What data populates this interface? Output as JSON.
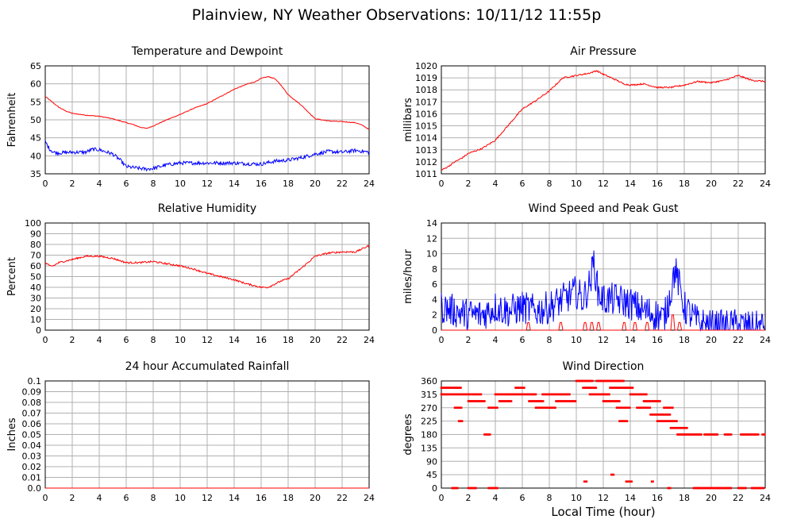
{
  "page": {
    "title": "Plainview, NY Weather Observations: 10/11/12 11:55p",
    "xaxis_label": "Local Time (hour)"
  },
  "chart_data": [
    {
      "id": "temp",
      "type": "line",
      "title": "Temperature and Dewpoint",
      "ylabel": "Fahrenheit",
      "xlim": [
        0,
        24
      ],
      "ylim": [
        35,
        65
      ],
      "xticks": [
        0,
        2,
        4,
        6,
        8,
        10,
        12,
        14,
        16,
        18,
        20,
        22,
        24
      ],
      "yticks": [
        35,
        40,
        45,
        50,
        55,
        60,
        65
      ],
      "grid": true,
      "series": [
        {
          "color": "#ff0000",
          "noise": 0.1,
          "x": [
            0,
            0.5,
            1,
            1.5,
            2,
            3,
            4,
            5,
            6,
            6.5,
            7,
            7.5,
            8,
            9,
            10,
            11,
            12,
            13,
            14,
            15,
            15.5,
            16,
            16.5,
            17,
            17.5,
            18,
            19,
            20,
            21,
            22,
            23,
            23.5,
            24
          ],
          "y": [
            56.5,
            55,
            53.5,
            52.5,
            51.8,
            51.3,
            51,
            50.3,
            49.2,
            48.7,
            48,
            47.6,
            48.3,
            50,
            51.5,
            53.2,
            54.5,
            56.5,
            58.5,
            60,
            60.5,
            61.5,
            62,
            61.5,
            59.5,
            57,
            54,
            50.3,
            49.7,
            49.5,
            49.2,
            48.5,
            47.3
          ]
        },
        {
          "color": "#0000ff",
          "noise": 0.5,
          "x": [
            0,
            0.3,
            0.6,
            1,
            2,
            3,
            3.5,
            4,
            5,
            5.5,
            6,
            7,
            7.5,
            8,
            9,
            10,
            11,
            12,
            13,
            14,
            15,
            16,
            17,
            18,
            19,
            20,
            21,
            22,
            23,
            24
          ],
          "y": [
            44,
            42,
            41,
            40.8,
            41,
            41,
            41.8,
            41.7,
            40.5,
            39,
            37,
            36.5,
            36.3,
            36.5,
            37.5,
            38,
            38,
            38,
            38,
            38,
            37.8,
            37.7,
            38.5,
            38.8,
            39.5,
            40.5,
            41.2,
            41,
            41.5,
            41
          ]
        }
      ]
    },
    {
      "id": "pressure",
      "type": "line",
      "title": "Air Pressure",
      "ylabel": "millibars",
      "xlim": [
        0,
        24
      ],
      "ylim": [
        1011,
        1020
      ],
      "xticks": [
        0,
        2,
        4,
        6,
        8,
        10,
        12,
        14,
        16,
        18,
        20,
        22,
        24
      ],
      "yticks": [
        1011,
        1012,
        1013,
        1014,
        1015,
        1016,
        1017,
        1018,
        1019,
        1020
      ],
      "grid": true,
      "series": [
        {
          "color": "#ff0000",
          "noise": 0.06,
          "x": [
            0,
            0.5,
            1,
            1.5,
            2,
            3,
            4,
            5,
            6,
            7,
            8,
            9,
            10,
            11,
            11.5,
            12,
            13,
            13.5,
            14,
            15,
            16,
            17,
            18,
            19,
            20,
            21,
            22,
            23,
            24
          ],
          "y": [
            1011.3,
            1011.6,
            1012,
            1012.3,
            1012.7,
            1013.1,
            1013.8,
            1015.1,
            1016.4,
            1017.1,
            1017.9,
            1019,
            1019.2,
            1019.4,
            1019.6,
            1019.3,
            1018.8,
            1018.5,
            1018.4,
            1018.5,
            1018.2,
            1018.2,
            1018.4,
            1018.7,
            1018.6,
            1018.8,
            1019.2,
            1018.8,
            1018.7
          ]
        }
      ]
    },
    {
      "id": "humidity",
      "type": "line",
      "title": "Relative Humidity",
      "ylabel": "Percent",
      "xlim": [
        0,
        24
      ],
      "ylim": [
        0,
        100
      ],
      "xticks": [
        0,
        2,
        4,
        6,
        8,
        10,
        12,
        14,
        16,
        18,
        20,
        22,
        24
      ],
      "yticks": [
        0,
        10,
        20,
        30,
        40,
        50,
        60,
        70,
        80,
        90,
        100
      ],
      "grid": true,
      "series": [
        {
          "color": "#ff0000",
          "noise": 0.8,
          "x": [
            0,
            0.3,
            0.6,
            1,
            2,
            3,
            4,
            5,
            6,
            7,
            8,
            9,
            10,
            11,
            12,
            13,
            14,
            15,
            16,
            16.5,
            17,
            17.5,
            18,
            19,
            20,
            21,
            22,
            23,
            23.5,
            24
          ],
          "y": [
            63,
            60,
            60,
            63,
            66,
            69,
            69,
            67,
            63,
            63,
            64,
            62,
            60,
            57,
            53,
            50,
            47,
            43,
            40,
            40,
            43,
            46,
            48,
            58,
            69,
            72,
            73,
            73,
            76,
            79
          ]
        }
      ]
    },
    {
      "id": "wind",
      "type": "line",
      "title": "Wind Speed and Peak Gust",
      "ylabel": "miles/hour",
      "xlim": [
        0,
        24
      ],
      "ylim": [
        0,
        14
      ],
      "xticks": [
        0,
        2,
        4,
        6,
        8,
        10,
        12,
        14,
        16,
        18,
        20,
        22,
        24
      ],
      "yticks": [
        0,
        2,
        4,
        6,
        8,
        10,
        12,
        14
      ],
      "grid": true,
      "series": [
        {
          "color": "#0000ff",
          "noise": 2.2,
          "x": [
            0,
            1,
            2,
            3,
            4,
            5,
            6,
            7,
            8,
            9,
            10,
            10.5,
            11,
            11.3,
            11.6,
            12,
            13,
            14,
            15,
            16,
            16.5,
            17,
            17.3,
            17.6,
            18,
            19,
            20,
            21,
            22,
            23,
            24
          ],
          "y": [
            3,
            2.5,
            2,
            2,
            3,
            2.5,
            3,
            2.5,
            3,
            4,
            5,
            4,
            6,
            9,
            5,
            4,
            4,
            3.5,
            2.5,
            2,
            1.5,
            5,
            8,
            6,
            3,
            1,
            0.5,
            0.5,
            0.7,
            0.3,
            0.5
          ]
        },
        {
          "color": "#ff0000",
          "noise": 0,
          "x": [
            0,
            6.3,
            6.4,
            6.5,
            6.6,
            8.7,
            8.8,
            8.9,
            9.0,
            10.5,
            10.6,
            10.7,
            10.8,
            11,
            11.1,
            11.2,
            11.3,
            11.5,
            11.6,
            11.7,
            11.8,
            13.4,
            13.5,
            13.6,
            13.7,
            14.2,
            14.3,
            14.4,
            14.5,
            15.1,
            15.2,
            15.3,
            15.4,
            17,
            17.1,
            17.2,
            17.3,
            17.5,
            17.6,
            17.7,
            17.8,
            24
          ],
          "y": [
            0,
            0,
            1,
            1,
            0,
            0,
            1,
            1,
            0,
            0,
            1,
            1,
            0,
            0,
            1,
            1,
            0,
            0,
            1,
            1,
            0,
            0,
            1,
            1,
            0,
            0,
            1,
            1,
            0,
            0,
            1,
            1,
            0,
            0,
            2,
            2,
            0,
            0,
            1,
            1,
            0,
            0
          ]
        }
      ]
    },
    {
      "id": "rain",
      "type": "line",
      "title": "24 hour Accumulated Rainfall",
      "ylabel": "Inches",
      "xlim": [
        0,
        24
      ],
      "ylim": [
        0,
        0.1
      ],
      "xticks": [
        0,
        2,
        4,
        6,
        8,
        10,
        12,
        14,
        16,
        18,
        20,
        22,
        24
      ],
      "yticks": [
        0.0,
        0.01,
        0.02,
        0.03,
        0.04,
        0.05,
        0.06,
        0.07,
        0.08,
        0.09,
        0.1
      ],
      "ytick_labels": [
        "0.0",
        "0.01",
        "0.02",
        "0.03",
        "0.04",
        "0.05",
        "0.06",
        "0.07",
        "0.08",
        "0.09",
        "0.1"
      ],
      "grid": true,
      "series": [
        {
          "color": "#ff0000",
          "noise": 0,
          "x": [
            0,
            24
          ],
          "y": [
            0,
            0
          ]
        }
      ]
    },
    {
      "id": "direction",
      "type": "scatter",
      "title": "Wind Direction",
      "ylabel": "degrees",
      "xlim": [
        0,
        24
      ],
      "ylim": [
        0,
        360
      ],
      "xticks": [
        0,
        2,
        4,
        6,
        8,
        10,
        12,
        14,
        16,
        18,
        20,
        22,
        24
      ],
      "yticks": [
        0,
        45,
        90,
        135,
        180,
        225,
        270,
        315,
        360
      ],
      "grid": true,
      "series": [
        {
          "color": "#ff0000",
          "segments": [
            [
              0,
              1.5,
              337
            ],
            [
              0,
              2.2,
              315
            ],
            [
              1,
              1.5,
              270
            ],
            [
              1.3,
              1.6,
              225
            ],
            [
              2,
              3.2,
              292
            ],
            [
              2.3,
              3,
              315
            ],
            [
              3.2,
              3.6,
              180
            ],
            [
              3.5,
              4.2,
              270
            ],
            [
              4,
              5,
              315
            ],
            [
              4.3,
              5.2,
              292
            ],
            [
              5,
              7,
              315
            ],
            [
              5.5,
              6.2,
              337
            ],
            [
              6.5,
              7.6,
              292
            ],
            [
              7,
              8.5,
              270
            ],
            [
              7.5,
              9.5,
              315
            ],
            [
              8.5,
              10,
              292
            ],
            [
              10,
              11.2,
              360
            ],
            [
              10.5,
              11.5,
              337
            ],
            [
              11,
              12.5,
              315
            ],
            [
              11.5,
              13.5,
              360
            ],
            [
              12,
              13.2,
              292
            ],
            [
              12.5,
              14.2,
              337
            ],
            [
              13,
              14,
              270
            ],
            [
              13.2,
              13.8,
              225
            ],
            [
              14,
              15.2,
              315
            ],
            [
              14.5,
              15.5,
              270
            ],
            [
              15,
              16.2,
              292
            ],
            [
              15.5,
              17,
              247
            ],
            [
              16,
              17.5,
              225
            ],
            [
              16.5,
              17.2,
              270
            ],
            [
              17,
              18.2,
              202
            ],
            [
              17.5,
              19.3,
              180
            ],
            [
              19.5,
              20.5,
              180
            ],
            [
              21,
              21.5,
              180
            ],
            [
              22.2,
              23.5,
              180
            ],
            [
              23.8,
              24,
              180
            ],
            [
              0.8,
              1.2,
              0
            ],
            [
              2,
              2.6,
              0
            ],
            [
              3.5,
              4.2,
              0
            ],
            [
              10.6,
              10.8,
              22
            ],
            [
              12.6,
              12.8,
              45
            ],
            [
              13.7,
              14.1,
              22
            ],
            [
              15.6,
              15.7,
              22
            ],
            [
              16.8,
              17,
              0
            ],
            [
              18.7,
              20.5,
              0
            ],
            [
              20.5,
              21.5,
              0
            ],
            [
              22,
              22.6,
              0
            ],
            [
              23,
              23.9,
              0
            ]
          ]
        }
      ]
    }
  ]
}
